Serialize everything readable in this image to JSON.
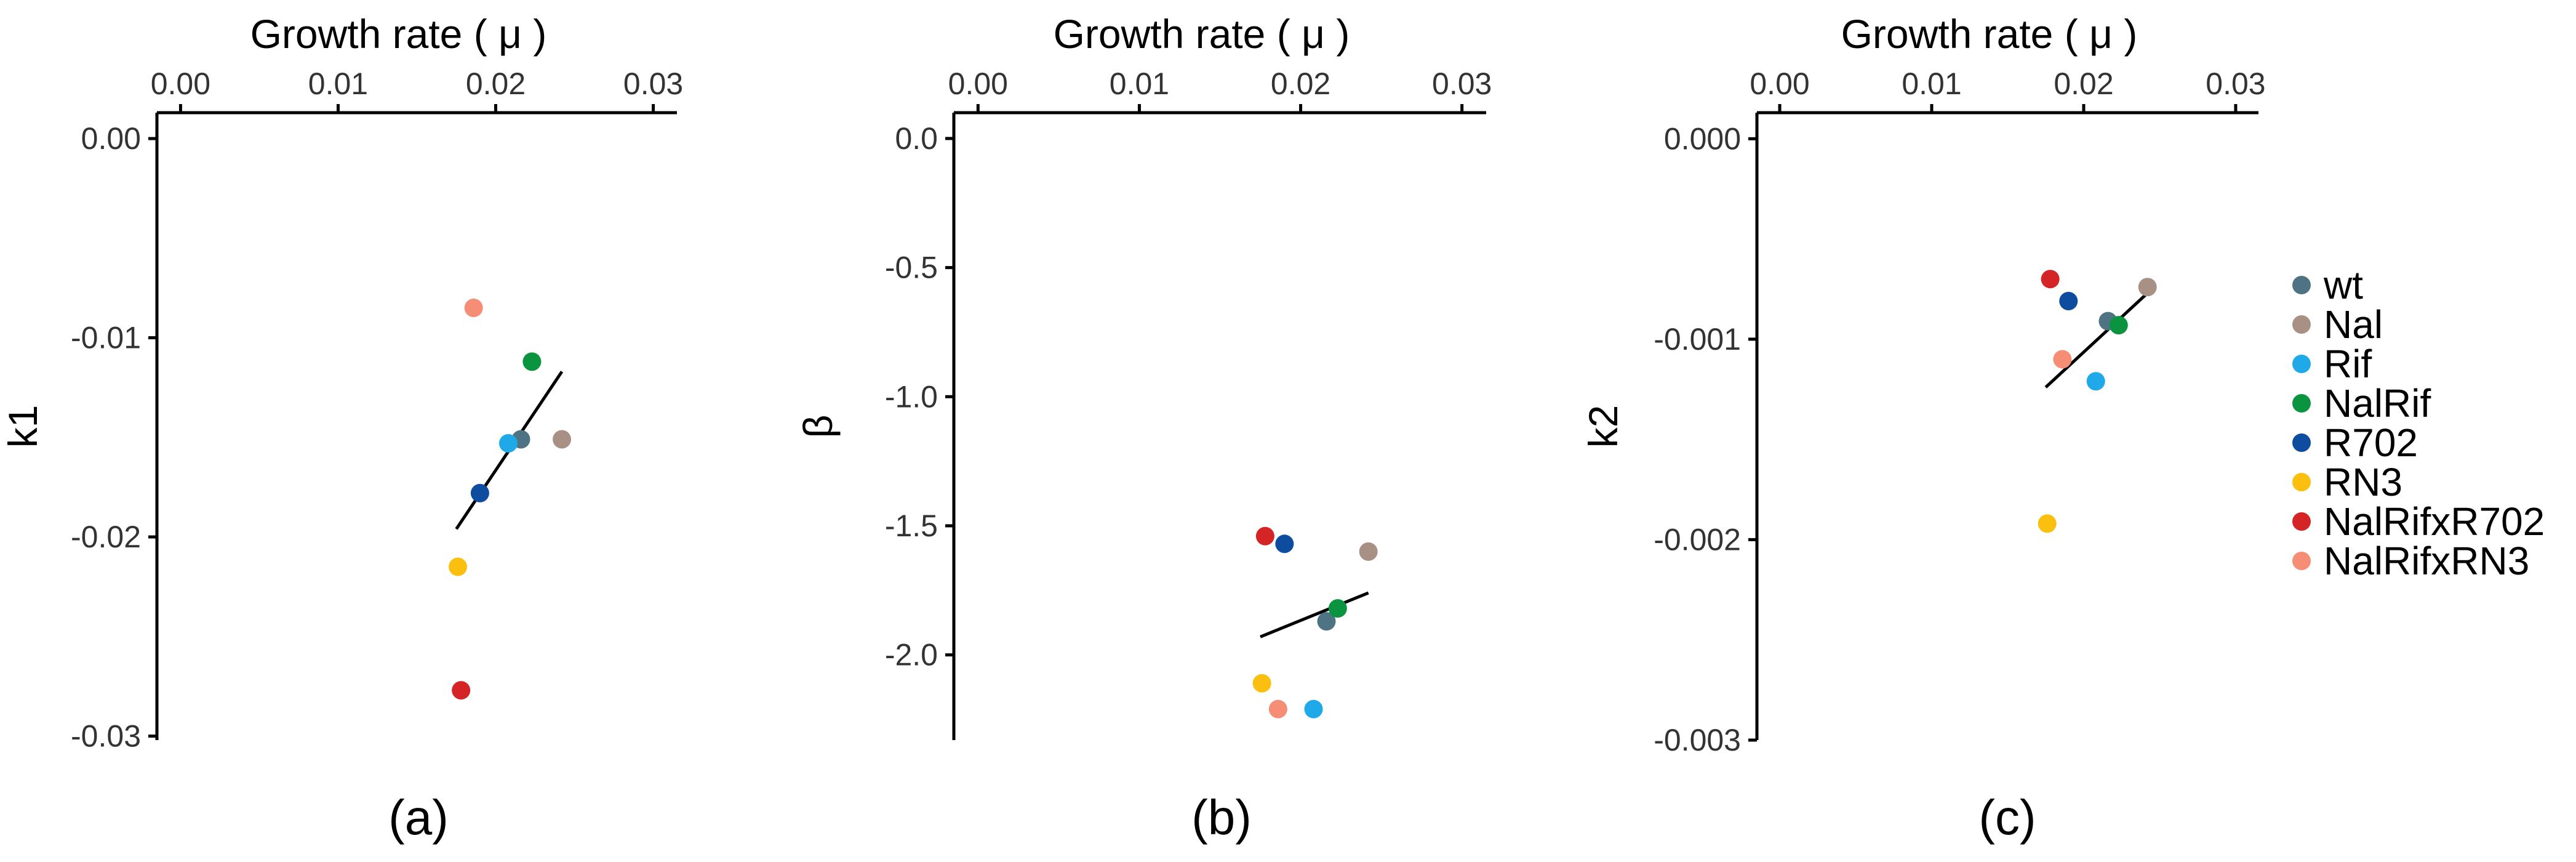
{
  "colors": {
    "wt": "#4E7382",
    "Nal": "#A89084",
    "Rif": "#1FA9E8",
    "NalRif": "#0A9440",
    "R702": "#0D4C9E",
    "RN3": "#FBBF10",
    "NalRifxR702": "#D52426",
    "NalRifxRN3": "#F58E74"
  },
  "legend": [
    "wt",
    "Nal",
    "Rif",
    "NalRif",
    "R702",
    "RN3",
    "NalRifxR702",
    "NalRifxRN3"
  ],
  "chart_data": [
    {
      "type": "scatter",
      "panel_label": "(a)",
      "xlabel": "Growth rate ( μ )",
      "ylabel": "k1",
      "xlim": [
        -0.0015,
        0.0315
      ],
      "ylim": [
        0.0013,
        -0.0302
      ],
      "xticks": [
        "0.00",
        "0.01",
        "0.02",
        "0.03"
      ],
      "xtick_values": [
        0.0,
        0.01,
        0.02,
        0.03
      ],
      "yticks": [
        "0.00",
        "-0.01",
        "-0.02",
        "-0.03"
      ],
      "ytick_values": [
        0.0,
        -0.01,
        -0.02,
        -0.03
      ],
      "points": [
        {
          "series": "wt",
          "x": 0.0216,
          "y": -0.0151
        },
        {
          "series": "Nal",
          "x": 0.0242,
          "y": -0.0151
        },
        {
          "series": "Rif",
          "x": 0.0208,
          "y": -0.0153
        },
        {
          "series": "NalRif",
          "x": 0.0223,
          "y": -0.0112
        },
        {
          "series": "R702",
          "x": 0.019,
          "y": -0.0178
        },
        {
          "series": "RN3",
          "x": 0.0176,
          "y": -0.0215
        },
        {
          "series": "NalRifxR702",
          "x": 0.0178,
          "y": -0.0277
        },
        {
          "series": "NalRifxRN3",
          "x": 0.0186,
          "y": -0.0085
        }
      ],
      "fit_line": {
        "x": [
          0.0175,
          0.0242
        ],
        "y": [
          -0.0196,
          -0.0117
        ]
      }
    },
    {
      "type": "scatter",
      "panel_label": "(b)",
      "xlabel": "Growth rate ( μ )",
      "ylabel": "β",
      "xlim": [
        -0.0015,
        0.0315
      ],
      "ylim": [
        0.1,
        -2.33
      ],
      "xticks": [
        "0.00",
        "0.01",
        "0.02",
        "0.03"
      ],
      "xtick_values": [
        0.0,
        0.01,
        0.02,
        0.03
      ],
      "yticks": [
        "0.0",
        "-0.5",
        "-1.0",
        "-1.5",
        "-2.0"
      ],
      "ytick_values": [
        0.0,
        -0.5,
        -1.0,
        -1.5,
        -2.0
      ],
      "points": [
        {
          "series": "wt",
          "x": 0.0216,
          "y": -1.87
        },
        {
          "series": "Nal",
          "x": 0.0242,
          "y": -1.6
        },
        {
          "series": "Rif",
          "x": 0.0208,
          "y": -2.21
        },
        {
          "series": "NalRif",
          "x": 0.0223,
          "y": -1.82
        },
        {
          "series": "R702",
          "x": 0.019,
          "y": -1.57
        },
        {
          "series": "RN3",
          "x": 0.0176,
          "y": -2.11
        },
        {
          "series": "NalRifxR702",
          "x": 0.0178,
          "y": -1.54
        },
        {
          "series": "NalRifxRN3",
          "x": 0.0186,
          "y": -2.21
        }
      ],
      "fit_line": {
        "x": [
          0.0175,
          0.0242
        ],
        "y": [
          -1.93,
          -1.76
        ]
      }
    },
    {
      "type": "scatter",
      "panel_label": "(c)",
      "xlabel": "Growth rate ( μ )",
      "ylabel": "k2",
      "xlim": [
        -0.0015,
        0.0315
      ],
      "ylim": [
        0.00013,
        -0.003
      ],
      "xticks": [
        "0.00",
        "0.01",
        "0.02",
        "0.03"
      ],
      "xtick_values": [
        0.0,
        0.01,
        0.02,
        0.03
      ],
      "yticks": [
        "0.000",
        "-0.001",
        "-0.002",
        "-0.003"
      ],
      "ytick_values": [
        0.0,
        -0.001,
        -0.002,
        -0.003
      ],
      "points": [
        {
          "series": "wt",
          "x": 0.0216,
          "y": -0.00091
        },
        {
          "series": "Nal",
          "x": 0.0242,
          "y": -0.00074
        },
        {
          "series": "Rif",
          "x": 0.0208,
          "y": -0.00121
        },
        {
          "series": "NalRif",
          "x": 0.0223,
          "y": -0.00093
        },
        {
          "series": "R702",
          "x": 0.019,
          "y": -0.00081
        },
        {
          "series": "RN3",
          "x": 0.0176,
          "y": -0.00192
        },
        {
          "series": "NalRifxR702",
          "x": 0.0178,
          "y": -0.0007
        },
        {
          "series": "NalRifxRN3",
          "x": 0.0186,
          "y": -0.0011
        }
      ],
      "fit_line": {
        "x": [
          0.0175,
          0.0242
        ],
        "y": [
          -0.00124,
          -0.00077
        ]
      }
    }
  ]
}
